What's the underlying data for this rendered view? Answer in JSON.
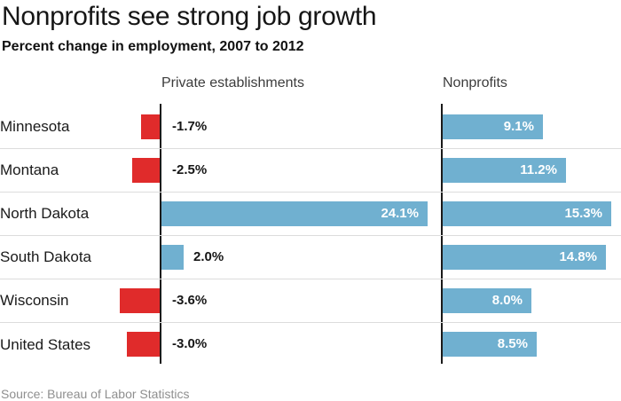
{
  "header": {
    "title": "Nonprofits see strong job growth",
    "subtitle": "Percent change in employment, 2007 to 2012"
  },
  "chart_data": {
    "type": "bar",
    "orientation": "horizontal",
    "title": "Nonprofits see strong job growth",
    "subtitle": "Percent change in employment, 2007 to 2012",
    "unit": "%",
    "categories": [
      "Minnesota",
      "Montana",
      "North Dakota",
      "South Dakota",
      "Wisconsin",
      "United States"
    ],
    "series": [
      {
        "name": "Private establishments",
        "values": [
          -1.7,
          -2.5,
          24.1,
          2.0,
          -3.6,
          -3.0
        ],
        "labels": [
          "-1.7%",
          "-2.5%",
          "24.1%",
          "2.0%",
          "-3.6%",
          "-3.0%"
        ]
      },
      {
        "name": "Nonprofits",
        "values": [
          9.1,
          11.2,
          15.3,
          14.8,
          8.0,
          8.5
        ],
        "labels": [
          "9.1%",
          "11.2%",
          "15.3%",
          "14.8%",
          "8.0%",
          "8.5%"
        ]
      }
    ],
    "positive_color": "#70b0d0",
    "negative_color": "#e02b2b",
    "axis_color": "#1a1a1a",
    "separator_color": "#dcdcdc",
    "grid": "row-separators-only",
    "legend_position": "column-headers-above-panels"
  },
  "footer": {
    "source": "Source: Bureau of Labor Statistics"
  }
}
